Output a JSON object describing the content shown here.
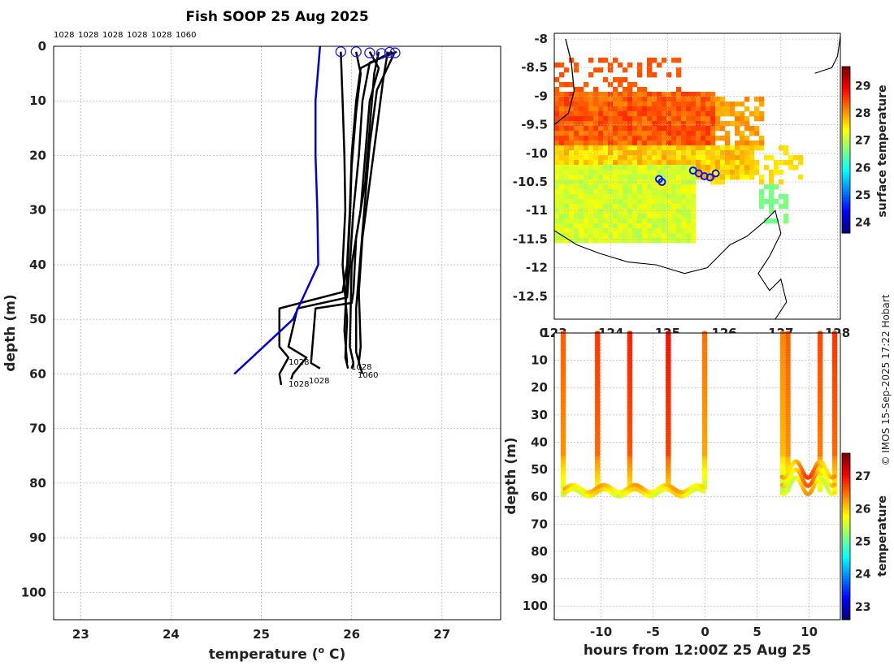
{
  "chart_data": [
    {
      "type": "line",
      "title": "Fish SOOP 25 Aug 2025",
      "xlabel_main": "temperature (",
      "xlabel_sup": "o",
      "xlabel_end": " C)",
      "ylabel": "depth (m)",
      "xlim": [
        22.7,
        27.65
      ],
      "ylim": [
        0,
        105
      ],
      "xticks": [
        23,
        24,
        25,
        26,
        27
      ],
      "yticks": [
        0,
        10,
        20,
        30,
        40,
        50,
        60,
        70,
        80,
        90,
        100
      ],
      "top_labels": [
        "1028",
        "1028",
        "1028",
        "1028",
        "1028",
        "1060"
      ],
      "bottom_labels": [
        "1028",
        "1028",
        "1028",
        "1028",
        "1060"
      ],
      "reference_profile": {
        "color": "#0000dd",
        "points": [
          [
            25.65,
            0
          ],
          [
            25.6,
            10
          ],
          [
            25.6,
            20
          ],
          [
            25.62,
            30
          ],
          [
            25.63,
            40
          ],
          [
            25.35,
            50
          ],
          [
            24.7,
            60
          ]
        ]
      },
      "profiles": [
        [
          [
            26.45,
            1
          ],
          [
            26.1,
            4
          ],
          [
            26.05,
            10
          ],
          [
            26.0,
            20
          ],
          [
            25.98,
            30
          ],
          [
            25.95,
            40
          ],
          [
            25.9,
            45
          ],
          [
            25.2,
            48
          ],
          [
            25.2,
            55
          ],
          [
            25.3,
            57
          ],
          [
            25.2,
            60
          ],
          [
            25.22,
            62
          ]
        ],
        [
          [
            26.5,
            1
          ],
          [
            26.2,
            3
          ],
          [
            26.12,
            10
          ],
          [
            26.08,
            20
          ],
          [
            26.02,
            30
          ],
          [
            25.98,
            40
          ],
          [
            25.95,
            46
          ],
          [
            25.4,
            48
          ],
          [
            25.3,
            55
          ],
          [
            25.5,
            57
          ],
          [
            25.35,
            60
          ],
          [
            25.33,
            61
          ]
        ],
        [
          [
            26.3,
            1
          ],
          [
            26.25,
            5
          ],
          [
            26.2,
            15
          ],
          [
            26.15,
            25
          ],
          [
            26.05,
            35
          ],
          [
            26.02,
            45
          ],
          [
            26.0,
            47
          ],
          [
            25.6,
            48
          ],
          [
            25.55,
            58
          ],
          [
            25.65,
            59
          ]
        ],
        [
          [
            26.2,
            1
          ],
          [
            26.3,
            4
          ],
          [
            26.2,
            10
          ],
          [
            26.15,
            20
          ],
          [
            26.1,
            30
          ],
          [
            26.0,
            40
          ],
          [
            25.98,
            55
          ],
          [
            26.02,
            58
          ],
          [
            26.0,
            59
          ]
        ],
        [
          [
            26.4,
            1
          ],
          [
            26.35,
            6
          ],
          [
            26.28,
            15
          ],
          [
            26.2,
            25
          ],
          [
            26.12,
            35
          ],
          [
            26.08,
            45
          ],
          [
            26.1,
            55
          ],
          [
            26.08,
            58
          ],
          [
            26.12,
            60
          ]
        ],
        [
          [
            25.88,
            1
          ],
          [
            25.9,
            10
          ],
          [
            25.92,
            20
          ],
          [
            25.93,
            30
          ],
          [
            25.9,
            40
          ],
          [
            25.95,
            50
          ],
          [
            25.93,
            57
          ],
          [
            25.96,
            59
          ]
        ],
        [
          [
            26.05,
            1
          ],
          [
            26.1,
            5
          ],
          [
            26.05,
            12
          ],
          [
            26.0,
            22
          ],
          [
            25.98,
            32
          ],
          [
            25.95,
            42
          ],
          [
            25.92,
            52
          ],
          [
            25.95,
            58
          ]
        ],
        [
          [
            26.48,
            1
          ],
          [
            26.28,
            8
          ],
          [
            26.2,
            18
          ],
          [
            26.15,
            28
          ],
          [
            26.1,
            38
          ],
          [
            26.05,
            48
          ],
          [
            26.05,
            56
          ],
          [
            26.1,
            59
          ]
        ]
      ],
      "start_markers": [
        [
          25.88,
          1
        ],
        [
          26.05,
          1
        ],
        [
          26.2,
          1.2
        ],
        [
          26.33,
          1.3
        ],
        [
          26.42,
          1.1
        ],
        [
          26.48,
          1.2
        ]
      ]
    },
    {
      "type": "heatmap",
      "colorbar_label": "surface temperature",
      "colorbar_ticks": [
        24,
        25,
        26,
        27,
        28,
        29
      ],
      "colorbar_range": [
        23.6,
        29.7
      ],
      "xlim": [
        123.0,
        128.05
      ],
      "ylim": [
        -12.9,
        -7.9
      ],
      "yticks": [
        -8,
        -8.5,
        -9,
        -9.5,
        -10,
        -10.5,
        -11,
        -11.5,
        -12,
        -12.5
      ],
      "xtick_labels": [
        "123",
        "124",
        "125",
        "126",
        "127",
        "128"
      ],
      "ship_track": [
        [
          124.85,
          -10.45
        ],
        [
          124.9,
          -10.5
        ],
        [
          125.45,
          -10.3
        ],
        [
          125.55,
          -10.35
        ],
        [
          125.65,
          -10.4
        ],
        [
          125.75,
          -10.42
        ],
        [
          125.85,
          -10.35
        ]
      ]
    },
    {
      "type": "scatter",
      "xlabel": "hours from 12:00Z 25 Aug 25",
      "ylabel": "depth (m)",
      "xlim": [
        -14.5,
        13
      ],
      "ylim": [
        0,
        105
      ],
      "xticks": [
        -10,
        -5,
        0,
        5,
        10
      ],
      "yticks": [
        0,
        10,
        20,
        30,
        40,
        50,
        60,
        70,
        80,
        90,
        100
      ],
      "colorbar_label": "temperature",
      "colorbar_ticks": [
        23,
        24,
        25,
        26,
        27
      ],
      "colorbar_range": [
        22.6,
        27.7
      ],
      "casts": [
        {
          "t": -13.7,
          "bottom": 60,
          "surface_temp": 26.6
        },
        {
          "t": -10.4,
          "bottom": 57,
          "surface_temp": 26.8
        },
        {
          "t": -7.3,
          "bottom": 57,
          "surface_temp": 26.9
        },
        {
          "t": -3.6,
          "bottom": 57,
          "surface_temp": 27.0
        },
        {
          "t": -0.1,
          "bottom": 57,
          "surface_temp": 26.5
        },
        {
          "t": 7.4,
          "bottom": 58,
          "surface_temp": 26.4
        },
        {
          "t": 7.9,
          "bottom": 58,
          "surface_temp": 26.6
        },
        {
          "t": 11.0,
          "bottom": 58,
          "surface_temp": 26.7
        },
        {
          "t": 12.4,
          "bottom": 59,
          "surface_temp": 26.8
        }
      ]
    }
  ],
  "credit": "© IMOS 15-Sep-2025 17:22 Hobart"
}
